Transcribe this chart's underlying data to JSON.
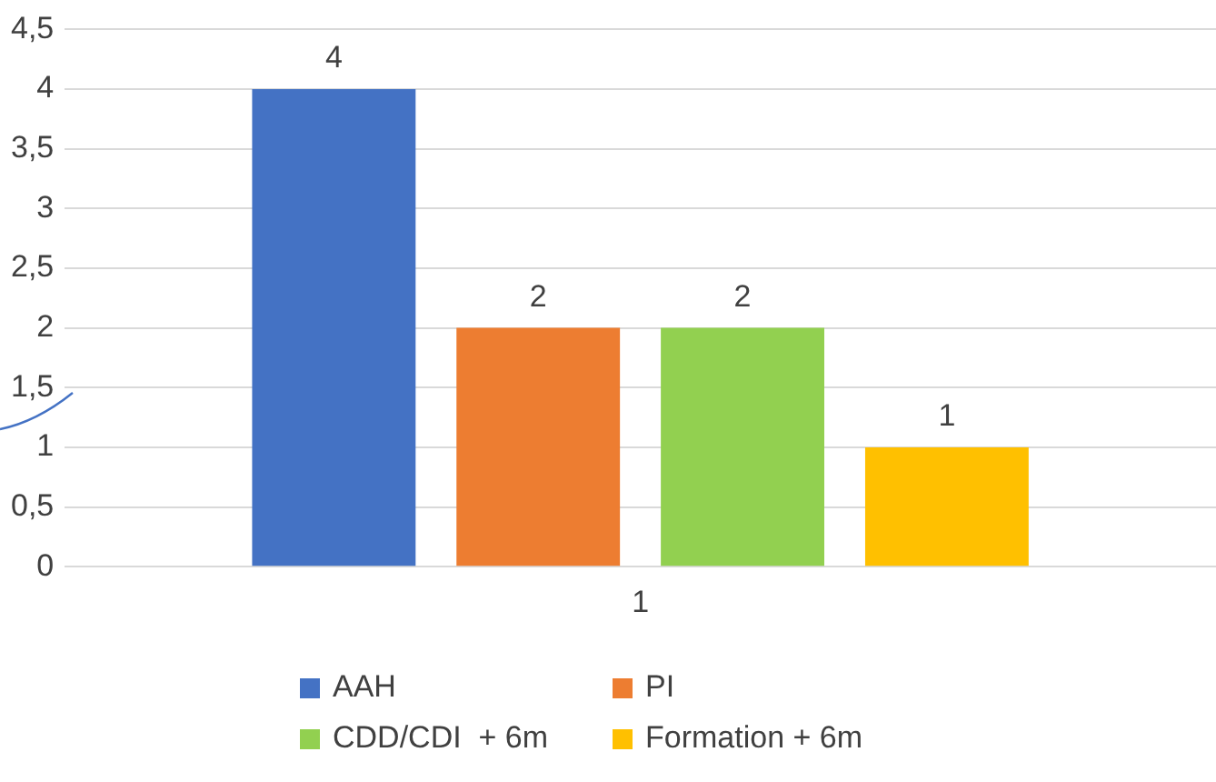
{
  "chart_data": {
    "type": "bar",
    "categories": [
      "1"
    ],
    "series": [
      {
        "name": "AAH",
        "color": "#4472c4",
        "values": [
          4
        ]
      },
      {
        "name": "PI",
        "color": "#ed7d31",
        "values": [
          2
        ]
      },
      {
        "name": "CDD/CDI  + 6m",
        "color": "#92d050",
        "values": [
          2
        ]
      },
      {
        "name": "Formation + 6m",
        "color": "#ffc000",
        "values": [
          1
        ]
      }
    ],
    "ylim": [
      0,
      4.5
    ],
    "yticks": [
      0,
      {
        "value": 0.5,
        "label": "0,5"
      },
      1,
      {
        "value": 1.5,
        "label": "1,5"
      },
      2,
      {
        "value": 2.5,
        "label": "2,5"
      },
      3,
      {
        "value": 3.5,
        "label": "3,5"
      },
      4,
      {
        "value": 4.5,
        "label": "4,5"
      }
    ],
    "grid": "y",
    "legend": "bottom",
    "data_labels": true
  }
}
